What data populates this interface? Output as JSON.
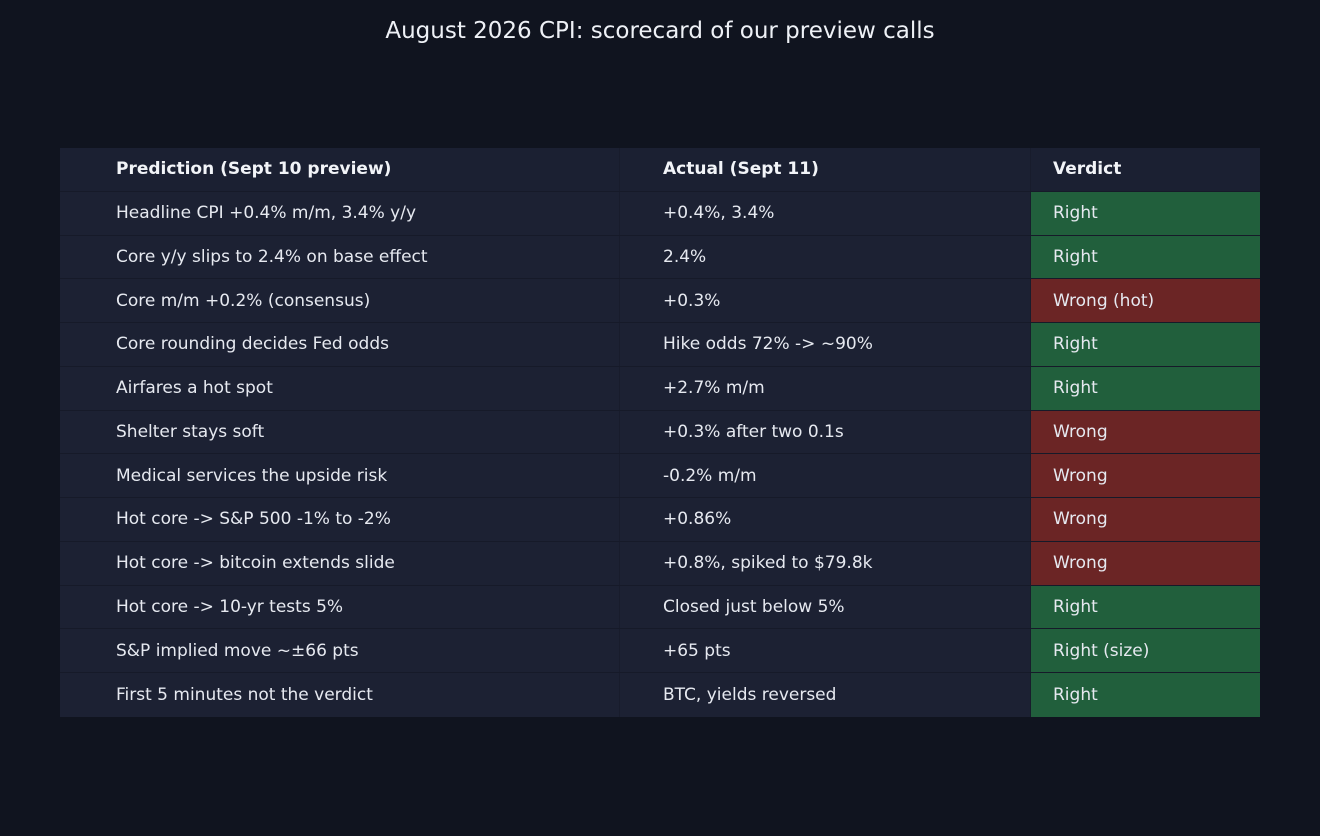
{
  "title": "August 2026 CPI: scorecard of our preview calls",
  "colors": {
    "background": "#10141f",
    "table_bg": "#1c2133",
    "right": "#215f3c",
    "wrong": "#6b2525"
  },
  "chart_data": {
    "type": "table",
    "title": "August 2026 CPI: scorecard of our preview calls",
    "columns": [
      "Prediction (Sept 10 preview)",
      "Actual (Sept 11)",
      "Verdict"
    ],
    "rows": [
      {
        "prediction": "Headline CPI +0.4% m/m, 3.4% y/y",
        "actual": "+0.4%, 3.4%",
        "verdict": "Right",
        "correct": true
      },
      {
        "prediction": "Core y/y slips to 2.4% on base effect",
        "actual": "2.4%",
        "verdict": "Right",
        "correct": true
      },
      {
        "prediction": "Core m/m +0.2% (consensus)",
        "actual": "+0.3%",
        "verdict": "Wrong (hot)",
        "correct": false
      },
      {
        "prediction": "Core rounding decides Fed odds",
        "actual": "Hike odds 72% -> ~90%",
        "verdict": "Right",
        "correct": true
      },
      {
        "prediction": "Airfares a hot spot",
        "actual": "+2.7% m/m",
        "verdict": "Right",
        "correct": true
      },
      {
        "prediction": "Shelter stays soft",
        "actual": "+0.3% after two 0.1s",
        "verdict": "Wrong",
        "correct": false
      },
      {
        "prediction": "Medical services the upside risk",
        "actual": "-0.2% m/m",
        "verdict": "Wrong",
        "correct": false
      },
      {
        "prediction": "Hot core -> S&P 500 -1% to -2%",
        "actual": "+0.86%",
        "verdict": "Wrong",
        "correct": false
      },
      {
        "prediction": "Hot core -> bitcoin extends slide",
        "actual": "+0.8%, spiked to $79.8k",
        "verdict": "Wrong",
        "correct": false
      },
      {
        "prediction": "Hot core -> 10-yr tests 5%",
        "actual": "Closed just below 5%",
        "verdict": "Right",
        "correct": true
      },
      {
        "prediction": "S&P implied move ~±66 pts",
        "actual": "+65 pts",
        "verdict": "Right (size)",
        "correct": true
      },
      {
        "prediction": "First 5 minutes not the verdict",
        "actual": "BTC, yields reversed",
        "verdict": "Right",
        "correct": true
      }
    ]
  }
}
